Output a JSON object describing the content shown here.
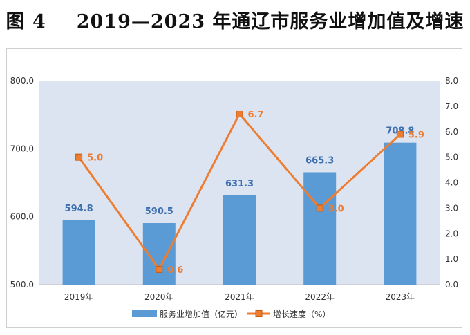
{
  "title": {
    "figure": "图 4",
    "text": "2019—2023 年通辽市服务业增加值及增速"
  },
  "chart_data": {
    "type": "bar",
    "categories": [
      "2019年",
      "2020年",
      "2021年",
      "2022年",
      "2023年"
    ],
    "series": [
      {
        "name": "服务业增加值（亿元）",
        "type": "bar",
        "axis": "left",
        "values": [
          594.8,
          590.5,
          631.3,
          665.3,
          708.8
        ],
        "color": "#5b9bd5"
      },
      {
        "name": "增长速度（%）",
        "type": "line",
        "axis": "right",
        "values": [
          5.0,
          0.6,
          6.7,
          3.0,
          5.9
        ],
        "color": "#ed7d31"
      }
    ],
    "y_left": {
      "min": 500,
      "max": 800,
      "ticks": [
        "500.0",
        "600.0",
        "700.0",
        "800.0"
      ]
    },
    "y_right": {
      "min": 0,
      "max": 8,
      "ticks": [
        "0.0",
        "1.0",
        "2.0",
        "3.0",
        "4.0",
        "5.0",
        "6.0",
        "7.0",
        "8.0"
      ]
    },
    "plot_background": "#dce4f2",
    "legend_position": "bottom"
  }
}
